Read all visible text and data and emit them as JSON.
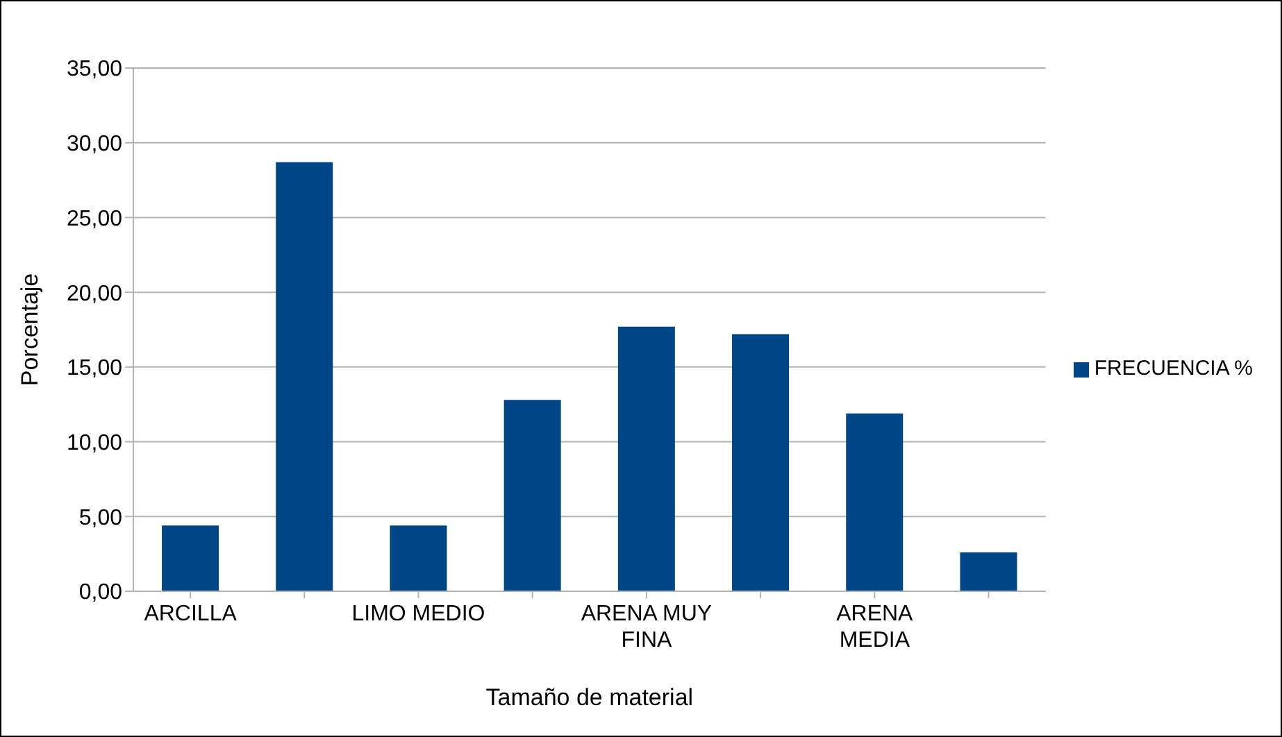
{
  "chart_data": {
    "type": "bar",
    "xlabel": "Tamaño de material",
    "ylabel": "Porcentaje",
    "categories": [
      "ARCILLA",
      null,
      "LIMO MEDIO",
      null,
      "ARENA MUY FINA",
      null,
      "ARENA MEDIA",
      null
    ],
    "series": [
      {
        "name": "FRECUENCIA %",
        "color": "#004586",
        "values": [
          4.4,
          28.7,
          4.4,
          12.8,
          17.7,
          17.2,
          11.9,
          2.6
        ]
      }
    ],
    "ylim": [
      0,
      35
    ],
    "yticks": [
      {
        "value": 0,
        "label": "0,00"
      },
      {
        "value": 5,
        "label": "5,00"
      },
      {
        "value": 10,
        "label": "10,00"
      },
      {
        "value": 15,
        "label": "15,00"
      },
      {
        "value": 20,
        "label": "20,00"
      },
      {
        "value": 25,
        "label": "25,00"
      },
      {
        "value": 30,
        "label": "30,00"
      },
      {
        "value": 35,
        "label": "35,00"
      }
    ],
    "grid": "y",
    "legend": "right"
  }
}
